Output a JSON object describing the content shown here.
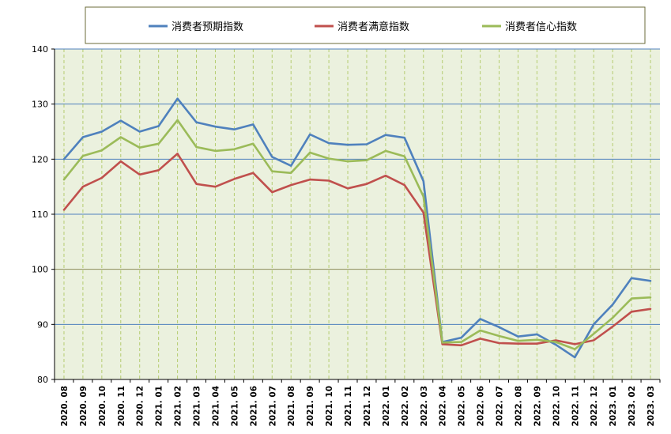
{
  "chart_data": {
    "type": "line",
    "title": "",
    "xlabel": "",
    "ylabel": "",
    "ylim": [
      80,
      140
    ],
    "yticks": [
      80,
      90,
      100,
      110,
      120,
      130,
      140
    ],
    "grid": true,
    "legend_position": "top",
    "plot_background": "#EBF1DE",
    "x": [
      "2020. 08",
      "2020. 09",
      "2020. 10",
      "2020. 11",
      "2020. 12",
      "2021. 01",
      "2021. 02",
      "2021. 03",
      "2021. 04",
      "2021. 05",
      "2021. 06",
      "2021. 07",
      "2021. 08",
      "2021. 09",
      "2021. 10",
      "2021. 11",
      "2021. 12",
      "2022. 01",
      "2022. 02",
      "2022. 03",
      "2022. 04",
      "2022. 05",
      "2022. 06",
      "2022. 07",
      "2022. 08",
      "2022. 09",
      "2022. 10",
      "2022. 11",
      "2022. 12",
      "2023. 01",
      "2023. 02",
      "2023. 03"
    ],
    "series": [
      {
        "name": "消费者预期指数",
        "color": "#4F81BD",
        "values": [
          120.0,
          124.0,
          125.0,
          127.0,
          125.0,
          126.0,
          131.0,
          126.7,
          125.9,
          125.4,
          126.3,
          120.4,
          118.8,
          124.5,
          122.9,
          122.6,
          122.7,
          124.4,
          123.9,
          116.0,
          86.8,
          87.6,
          91.0,
          89.5,
          87.8,
          88.2,
          86.3,
          84.0,
          90.0,
          93.6,
          98.4,
          97.9
        ]
      },
      {
        "name": "消费者满意指数",
        "color": "#C0504D",
        "values": [
          110.8,
          115.0,
          116.6,
          119.6,
          117.2,
          118.0,
          121.0,
          115.5,
          115.0,
          116.4,
          117.5,
          114.0,
          115.3,
          116.3,
          116.1,
          114.7,
          115.5,
          117.0,
          115.3,
          110.3,
          86.4,
          86.2,
          87.4,
          86.6,
          86.5,
          86.5,
          87.1,
          86.4,
          87.1,
          89.6,
          92.3,
          92.8
        ]
      },
      {
        "name": "消费者信心指数",
        "color": "#9BBB59",
        "values": [
          116.3,
          120.6,
          121.6,
          124.0,
          122.1,
          122.8,
          127.1,
          122.2,
          121.5,
          121.8,
          122.8,
          117.8,
          117.5,
          121.2,
          120.1,
          119.6,
          119.8,
          121.5,
          120.5,
          113.2,
          86.7,
          86.8,
          88.9,
          87.9,
          87.0,
          87.2,
          86.8,
          85.5,
          88.3,
          91.2,
          94.7,
          94.9
        ]
      }
    ]
  }
}
